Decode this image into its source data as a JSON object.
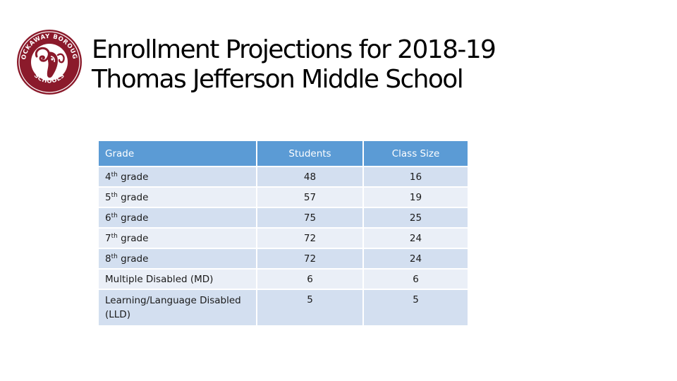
{
  "logo": {
    "text_top": "ROCKAWAY BOROUGH",
    "text_bottom": "SCHOOLS",
    "color": "#8b1a2b"
  },
  "title": {
    "line1": "Enrollment Projections for 2018-19",
    "line2": "Thomas Jefferson Middle School"
  },
  "table": {
    "headers": [
      "Grade",
      "Students",
      "Class Size"
    ],
    "rows": [
      {
        "grade_num": "4",
        "grade_sup": "th",
        "grade_rest": " grade",
        "students": "48",
        "class_size": "16"
      },
      {
        "grade_num": "5",
        "grade_sup": "th",
        "grade_rest": " grade",
        "students": "57",
        "class_size": "19"
      },
      {
        "grade_num": "6",
        "grade_sup": "th",
        "grade_rest": " grade",
        "students": "75",
        "class_size": "25"
      },
      {
        "grade_num": "7",
        "grade_sup": "th",
        "grade_rest": " grade",
        "students": "72",
        "class_size": "24"
      },
      {
        "grade_num": "8",
        "grade_sup": "th",
        "grade_rest": " grade",
        "students": "72",
        "class_size": "24"
      },
      {
        "grade": "Multiple Disabled (MD)",
        "students": "6",
        "class_size": "6"
      },
      {
        "grade": "Learning/Language Disabled (LLD)",
        "students": "5",
        "class_size": "5"
      }
    ]
  },
  "colors": {
    "header_bg": "#5b9bd5",
    "row_odd": "#d3dff0",
    "row_even": "#eaeff7",
    "logo_maroon": "#8b1a2b"
  }
}
